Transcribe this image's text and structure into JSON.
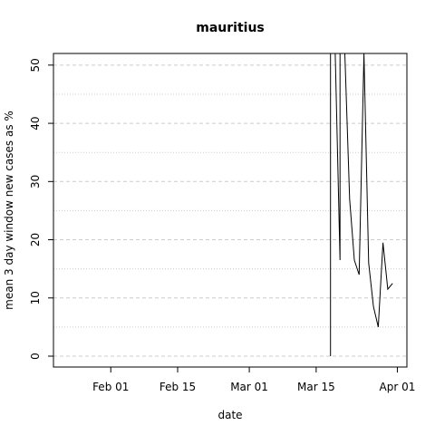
{
  "chart_data": {
    "type": "line",
    "title": "mauritius",
    "xlabel": "date",
    "ylabel": "mean  3  day window new cases as %",
    "x_ticks": [
      "Feb 01",
      "Feb 15",
      "Mar 01",
      "Mar 15",
      "Apr 01"
    ],
    "y_ticks": [
      "0",
      "10",
      "20",
      "30",
      "40",
      "50"
    ],
    "grid": "horizontal dashed at major ticks, dotted at half-steps",
    "ylim": [
      0,
      52
    ],
    "xlim": [
      "2020-01-20",
      "2020-04-03"
    ],
    "series": [
      {
        "x": [
          "2020-03-18",
          "2020-03-18",
          "2020-03-19",
          "2020-03-20",
          "2020-03-20",
          "2020-03-21",
          "2020-03-22",
          "2020-03-23",
          "2020-03-24",
          "2020-03-25",
          "2020-03-25",
          "2020-03-26",
          "2020-03-27",
          "2020-03-28",
          "2020-03-29",
          "2020-03-30",
          "2020-03-31"
        ],
        "y": [
          0,
          52,
          52,
          16.5,
          52,
          52,
          27,
          16.5,
          14,
          52,
          52,
          16,
          8.5,
          5,
          19.5,
          11.5,
          12.5
        ]
      }
    ]
  }
}
